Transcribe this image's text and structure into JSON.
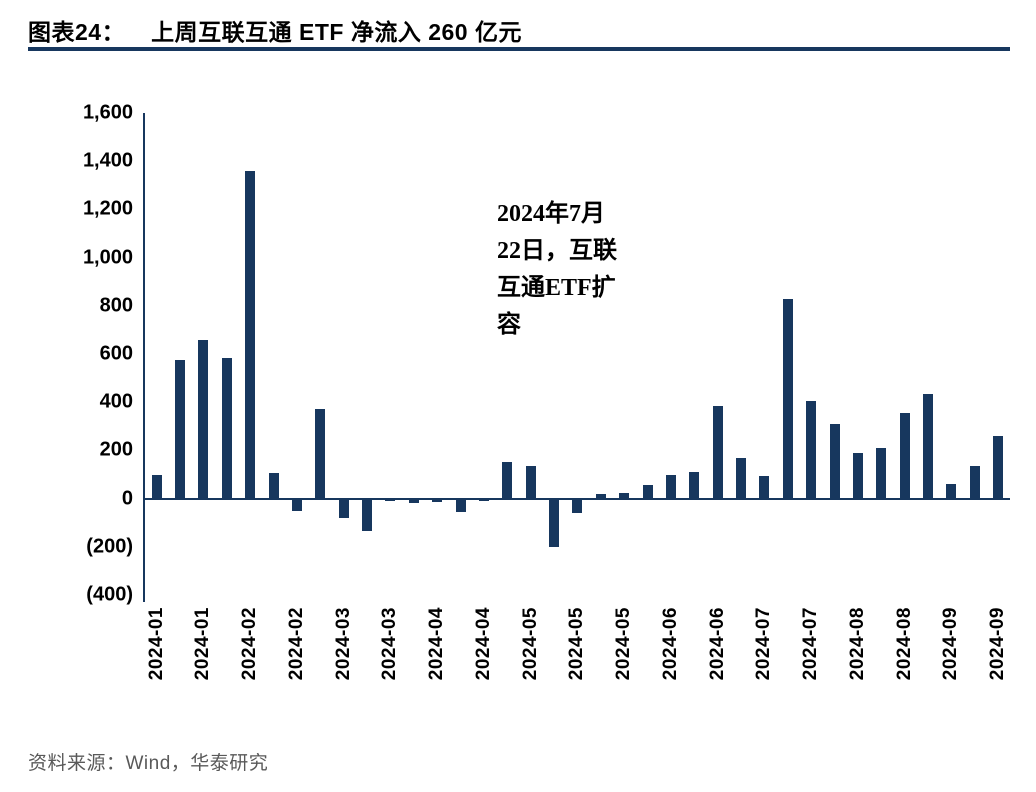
{
  "header": {
    "label": "图表24：",
    "title": "上周互联互通 ETF 净流入 260 亿元"
  },
  "annotation": {
    "lines": [
      "2024年7月",
      "22日，互联",
      "互通ETF扩",
      "容"
    ]
  },
  "footer": {
    "source": "资料来源：Wind，华泰研究"
  },
  "colors": {
    "bar": "#17375E",
    "accent": "#17375E",
    "axis": "#17375E",
    "footer_text": "#595959"
  },
  "chart_data": {
    "type": "bar",
    "title": "上周互联互通 ETF 净流入 260 亿元",
    "xlabel": "",
    "ylabel": "",
    "ylim": [
      -400,
      1600
    ],
    "grid": false,
    "legend": false,
    "yticks": [
      {
        "value": 1600,
        "label": "1,600"
      },
      {
        "value": 1400,
        "label": "1,400"
      },
      {
        "value": 1200,
        "label": "1,200"
      },
      {
        "value": 1000,
        "label": "1,000"
      },
      {
        "value": 800,
        "label": "800"
      },
      {
        "value": 600,
        "label": "600"
      },
      {
        "value": 400,
        "label": "400"
      },
      {
        "value": 200,
        "label": "200"
      },
      {
        "value": 0,
        "label": "0"
      },
      {
        "value": -200,
        "label": "(200)"
      },
      {
        "value": -400,
        "label": "(400)"
      }
    ],
    "x_labels": [
      "2024-01",
      "",
      "2024-01",
      "",
      "2024-02",
      "",
      "2024-02",
      "",
      "2024-03",
      "",
      "2024-03",
      "",
      "2024-04",
      "",
      "2024-04",
      "",
      "2024-05",
      "",
      "2024-05",
      "",
      "2024-05",
      "",
      "2024-06",
      "",
      "2024-06",
      "",
      "2024-07",
      "",
      "2024-07",
      "",
      "2024-08",
      "",
      "2024-08",
      "",
      "2024-09",
      "",
      "2024-09"
    ],
    "values": [
      100,
      575,
      660,
      585,
      1360,
      105,
      -50,
      370,
      -80,
      -135,
      -10,
      -20,
      -15,
      -55,
      -10,
      150,
      135,
      -200,
      -60,
      20,
      25,
      55,
      100,
      110,
      385,
      170,
      95,
      830,
      405,
      310,
      190,
      210,
      355,
      435,
      60,
      135,
      260
    ]
  }
}
